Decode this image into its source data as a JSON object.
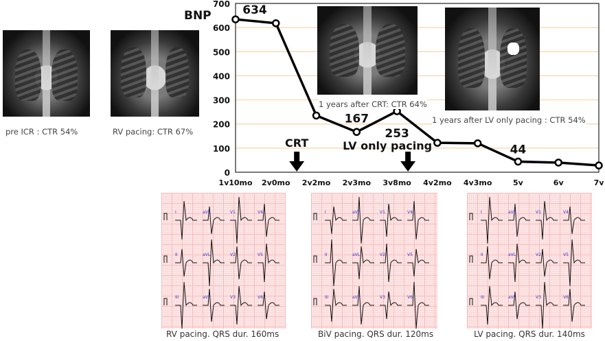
{
  "chart_data": {
    "type": "line",
    "ylabel": "BNP",
    "ylim": [
      0,
      700
    ],
    "yticks": [
      0,
      100,
      200,
      300,
      400,
      500,
      600,
      700
    ],
    "categories": [
      "1y10mo",
      "2y0mo",
      "2y2mo",
      "2y3mo",
      "3y8mo",
      "4y2mo",
      "4y3mo",
      "5y",
      "6y",
      "7y"
    ],
    "values": [
      634,
      618,
      235,
      167,
      253,
      122,
      120,
      44,
      40,
      28
    ],
    "grid": true,
    "data_labels": [
      {
        "category": "1y10mo",
        "text": "634"
      },
      {
        "category": "2y3mo",
        "text": "167"
      },
      {
        "category": "3y8mo",
        "text": "253"
      },
      {
        "category": "5y",
        "text": "44"
      }
    ],
    "annotations": [
      {
        "text": "CRT",
        "between": [
          "2y0mo",
          "2y2mo"
        ],
        "marker": "down-arrow"
      },
      {
        "text": "LV only pacing",
        "at": "3y8mo",
        "marker": "down-arrow"
      }
    ]
  },
  "xrays": [
    {
      "caption": "pre ICR : CTR 54%"
    },
    {
      "caption": "RV pacing: CTR 67%"
    },
    {
      "caption": "1 years after CRT: CTR 64%"
    },
    {
      "caption": "1 years after LV only pacing : CTR 54%"
    }
  ],
  "ecgs": [
    {
      "caption": "RV pacing. QRS dur. 160ms"
    },
    {
      "caption": "BiV pacing. QRS dur. 120ms"
    },
    {
      "caption": "LV pacing. QRS dur. 140ms"
    }
  ],
  "ecg_leads": [
    [
      "I",
      "aVR",
      "V1",
      "V4"
    ],
    [
      "II",
      "aVL",
      "V2",
      "V5"
    ],
    [
      "III",
      "aVF",
      "V3",
      "V6"
    ]
  ],
  "colors": {
    "line": "#000000",
    "grid": "#f8d3a8",
    "ecg_grid": "#f4b9b9",
    "lead_label": "#3333cc"
  }
}
